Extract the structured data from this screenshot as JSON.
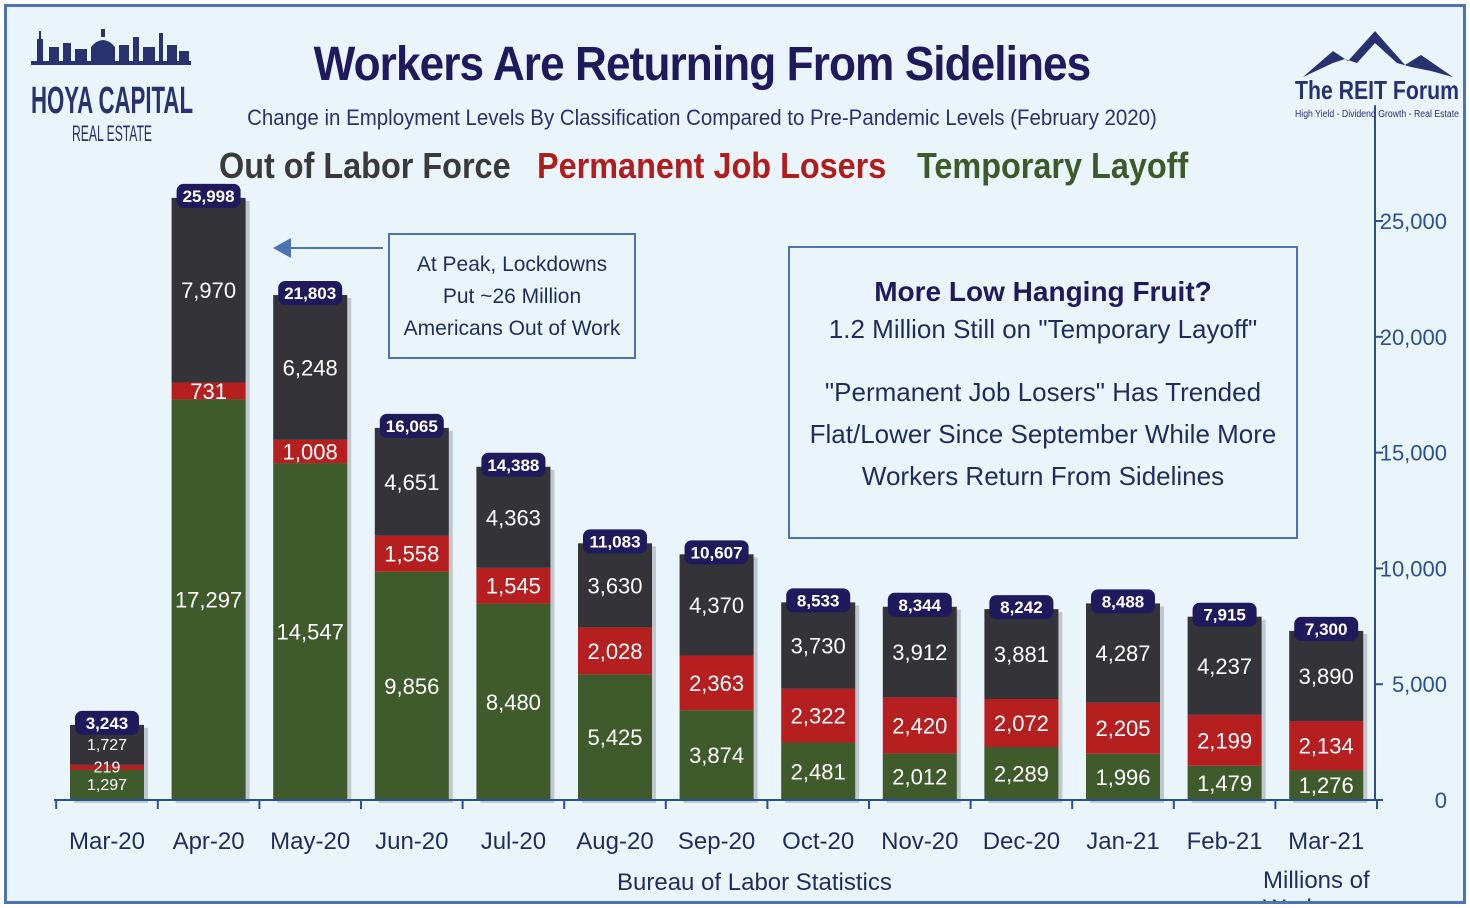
{
  "header": {
    "title": "Workers Are Returning From Sidelines",
    "subtitle": "Change in Employment Levels By Classification Compared to Pre-Pandemic Levels (February 2020)"
  },
  "logos": {
    "left_line1": "HOYA CAPITAL",
    "left_line2": "REAL ESTATE",
    "right_line1": "The REIT Forum",
    "right_line2": "High Yield - Dividend Growth - Real Estate"
  },
  "legend": {
    "out_of_labor_force": "Out of Labor Force",
    "permanent_job_losers": "Permanent Job Losers",
    "temporary_layoff": "Temporary Layoff"
  },
  "annotations": {
    "peak_line1": "At Peak, Lockdowns",
    "peak_line2": "Put ~26 Million",
    "peak_line3": "Americans Out of Work",
    "fruit_head": "More Low Hanging Fruit?",
    "fruit_sub": "1.2 Million Still on \"Temporary Layoff\"",
    "fruit_body1": "\"Permanent Job Losers\" Has Trended",
    "fruit_body2": "Flat/Lower Since September While More",
    "fruit_body3": "Workers Return From Sidelines"
  },
  "footer": {
    "source": "Bureau of Labor Statistics",
    "units": "Millions of Workers"
  },
  "colors": {
    "temporary_layoff": "#3f5a2b",
    "permanent_job_losers": "#b51f1f",
    "out_of_labor_force": "#333338",
    "total_label_bg": "#1f1a5c",
    "axis": "#2b4f8f"
  },
  "chart_data": {
    "type": "bar",
    "stacked": true,
    "categories": [
      "Mar-20",
      "Apr-20",
      "May-20",
      "Jun-20",
      "Jul-20",
      "Aug-20",
      "Sep-20",
      "Oct-20",
      "Nov-20",
      "Dec-20",
      "Jan-21",
      "Feb-21",
      "Mar-21"
    ],
    "series": [
      {
        "name": "Temporary Layoff",
        "values": [
          1297,
          17297,
          14547,
          9856,
          8480,
          5425,
          3874,
          2481,
          2012,
          2289,
          1996,
          1479,
          1276
        ]
      },
      {
        "name": "Permanent Job Losers",
        "values": [
          219,
          731,
          1008,
          1558,
          1545,
          2028,
          2363,
          2322,
          2420,
          2072,
          2205,
          2199,
          2134
        ]
      },
      {
        "name": "Out of Labor Force",
        "values": [
          1727,
          7970,
          6248,
          4651,
          4363,
          3630,
          4370,
          3730,
          3912,
          3881,
          4287,
          4237,
          3890
        ]
      }
    ],
    "totals": [
      3243,
      25998,
      21803,
      16065,
      14388,
      11083,
      10607,
      8533,
      8344,
      8242,
      8488,
      7915,
      7300
    ],
    "y_ticks": [
      0,
      5000,
      10000,
      15000,
      20000,
      25000
    ],
    "y_tick_labels": [
      "0",
      "5,000",
      "10,000",
      "15,000",
      "20,000",
      "25,000"
    ],
    "ylim": [
      0,
      30000
    ],
    "y_axis_side": "right",
    "grid": false
  }
}
